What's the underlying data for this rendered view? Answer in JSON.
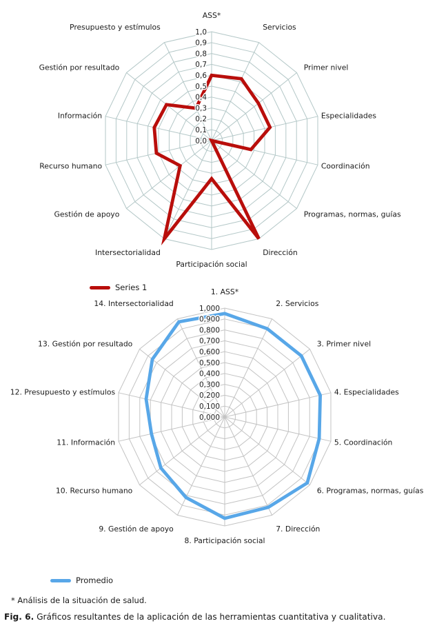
{
  "figure": {
    "footnote": "* Análisis de la situación de salud.",
    "caption_bold": "Fig. 6.",
    "caption_rest": "Gráficos resultantes de la aplicación de las herramientas cuantitativa y cualitativa."
  },
  "chart_data": [
    {
      "type": "radar",
      "title": "",
      "legend_label": "Series 1",
      "legend_position": "bottom-left",
      "series_color": "#b90e0b",
      "grid_color": "#b3c7c7",
      "text_color": "#1a1a1a",
      "levels": 10,
      "rlim": [
        0,
        1
      ],
      "grid": "on",
      "tick_labels": [
        "0,0",
        "0,1",
        "0,2",
        "0,3",
        "0,4",
        "0,5",
        "0,6",
        "0,7",
        "0,8",
        "0,9",
        "1,0"
      ],
      "categories": [
        "ASS*",
        "Servicios",
        "Primer nivel",
        "Especialidades",
        "Coordinación",
        "Programas, normas, guías",
        "Dirección",
        "Participación social",
        "Intersectorialidad",
        "Gestión de apoyo",
        "Recurso humano",
        "Información",
        "Gestión por resultado",
        "Presupuesto y estímulos"
      ],
      "series": [
        {
          "name": "Series 1",
          "values": [
            0.6,
            0.63,
            0.55,
            0.55,
            0.37,
            0.0,
            1.0,
            0.35,
            1.0,
            0.37,
            0.52,
            0.54,
            0.53,
            0.33
          ]
        }
      ]
    },
    {
      "type": "radar",
      "title": "",
      "legend_label": "Promedio",
      "legend_position": "bottom-left",
      "series_color": "#58a7e8",
      "grid_color": "#c3c3c3",
      "text_color": "#1a1a1a",
      "levels": 10,
      "rlim": [
        0,
        1
      ],
      "grid": "on",
      "tick_labels": [
        "0,000",
        "0,100",
        "0,200",
        "0,300",
        "0,400",
        "0,500",
        "0,600",
        "0,700",
        "0,800",
        "0,900",
        "1,000"
      ],
      "categories": [
        "1. ASS*",
        "2. Servicios",
        "3. Primer nivel",
        "4. Especialidades",
        "5. Coordinación",
        "6. Programas, normas, guías",
        "7. Dirección",
        "8. Participación social",
        "9. Gestión de apoyo",
        "10. Recurso humano",
        "11. Información",
        "12. Presupuesto y estímulos",
        "13. Gestión por resultado",
        "14. Intersectorialidad"
      ],
      "series": [
        {
          "name": "Promedio",
          "values": [
            0.95,
            0.9,
            0.9,
            0.9,
            0.89,
            0.97,
            0.92,
            0.93,
            0.82,
            0.75,
            0.69,
            0.74,
            0.85,
            0.97
          ]
        }
      ]
    }
  ]
}
